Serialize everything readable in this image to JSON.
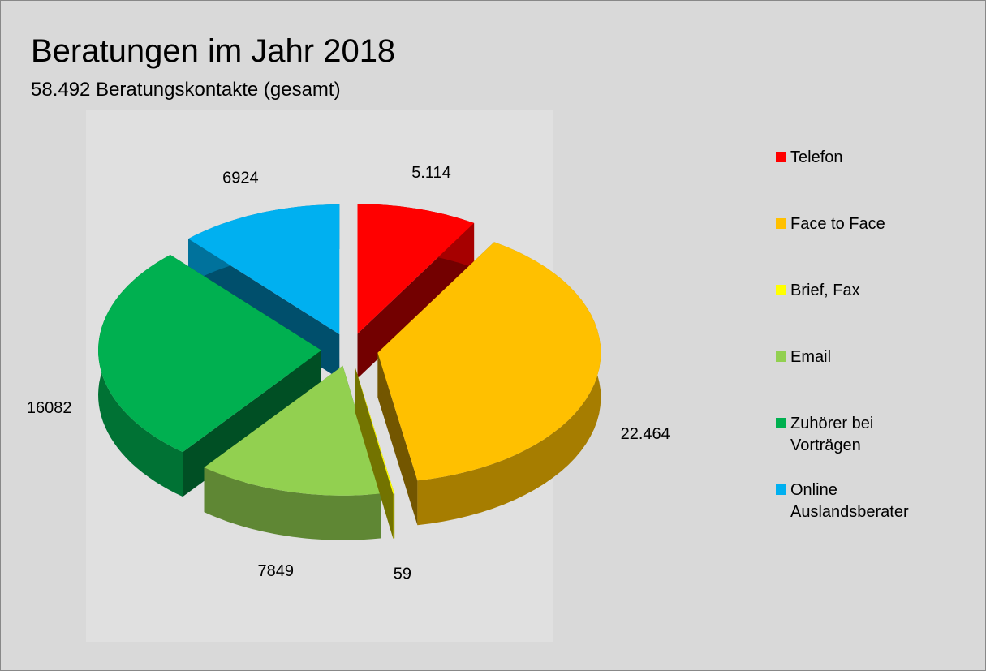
{
  "chart_data": {
    "type": "pie3d",
    "title": "Beratungen im Jahr 2018",
    "subtitle": "58.492 Beratungskontakte (gesamt)",
    "categories": [
      "Telefon",
      "Face to Face",
      "Brief, Fax",
      "Email",
      "Zuhörer bei Vorträgen",
      "Online Auslandsberater"
    ],
    "values": [
      5114,
      22464,
      59,
      7849,
      16082,
      6924
    ],
    "value_labels": [
      "5.114",
      "22.464",
      "59",
      "7849",
      "16082",
      "6924"
    ],
    "colors": [
      "#ff0000",
      "#ffc000",
      "#ffff00",
      "#92d050",
      "#00b050",
      "#00b0f0"
    ],
    "legend": "right"
  }
}
